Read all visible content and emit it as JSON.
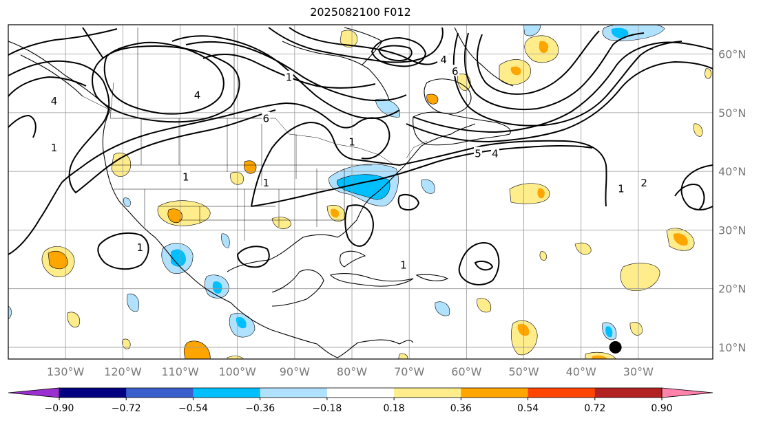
{
  "title": "2025082100 F012",
  "map": {
    "lon_range": [
      -140,
      -17
    ],
    "lat_range": [
      8,
      65
    ],
    "lat_ticks": [
      {
        "lat": 60,
        "label": "60°N"
      },
      {
        "lat": 50,
        "label": "50°N"
      },
      {
        "lat": 40,
        "label": "40°N"
      },
      {
        "lat": 30,
        "label": "30°N"
      },
      {
        "lat": 20,
        "label": "20°N"
      },
      {
        "lat": 10,
        "label": "10°N"
      }
    ],
    "lon_ticks": [
      {
        "lon": -130,
        "label": "130°W"
      },
      {
        "lon": -120,
        "label": "120°W"
      },
      {
        "lon": -110,
        "label": "110°W"
      },
      {
        "lon": -100,
        "label": "100°W"
      },
      {
        "lon": -90,
        "label": "90°W"
      },
      {
        "lon": -80,
        "label": "80°W"
      },
      {
        "lon": -70,
        "label": "70°W"
      },
      {
        "lon": -60,
        "label": "60°W"
      },
      {
        "lon": -50,
        "label": "50°W"
      },
      {
        "lon": -40,
        "label": "40°W"
      },
      {
        "lon": -30,
        "label": "30°W"
      }
    ],
    "marker": {
      "lon": -34,
      "lat": 10,
      "color": "#000000"
    },
    "contour_labels": [
      {
        "text": "1",
        "lon": -109,
        "lat": 39
      },
      {
        "text": "1",
        "lon": -95,
        "lat": 38
      },
      {
        "text": "1",
        "lon": -132,
        "lat": 44
      },
      {
        "text": "1",
        "lon": -71,
        "lat": 24
      },
      {
        "text": "1",
        "lon": -80,
        "lat": 45
      },
      {
        "text": "1",
        "lon": -91,
        "lat": 56
      },
      {
        "text": "1",
        "lon": -33,
        "lat": 37
      },
      {
        "text": "4",
        "lon": -107,
        "lat": 53
      },
      {
        "text": "4",
        "lon": -55,
        "lat": 43
      },
      {
        "text": "5",
        "lon": -58,
        "lat": 43
      },
      {
        "text": "4",
        "lon": -64,
        "lat": 59
      },
      {
        "text": "6",
        "lon": -62,
        "lat": 57
      },
      {
        "text": "6",
        "lon": -95,
        "lat": 49
      },
      {
        "text": "4",
        "lon": -132,
        "lat": 52
      },
      {
        "text": "2",
        "lon": -29,
        "lat": 38
      },
      {
        "text": "1",
        "lon": -117,
        "lat": 27
      }
    ]
  },
  "colorbar": {
    "colors": [
      "#9b30d0",
      "#000080",
      "#3a5fcd",
      "#00bfff",
      "#b0e2ff",
      "#ffffff",
      "#ffec8b",
      "#ffa500",
      "#ff4500",
      "#b22222",
      "#ff82ab"
    ],
    "ticks": [
      "−0.90",
      "−0.72",
      "−0.54",
      "−0.36",
      "−0.18",
      "0.18",
      "0.36",
      "0.54",
      "0.72",
      "0.90"
    ]
  }
}
